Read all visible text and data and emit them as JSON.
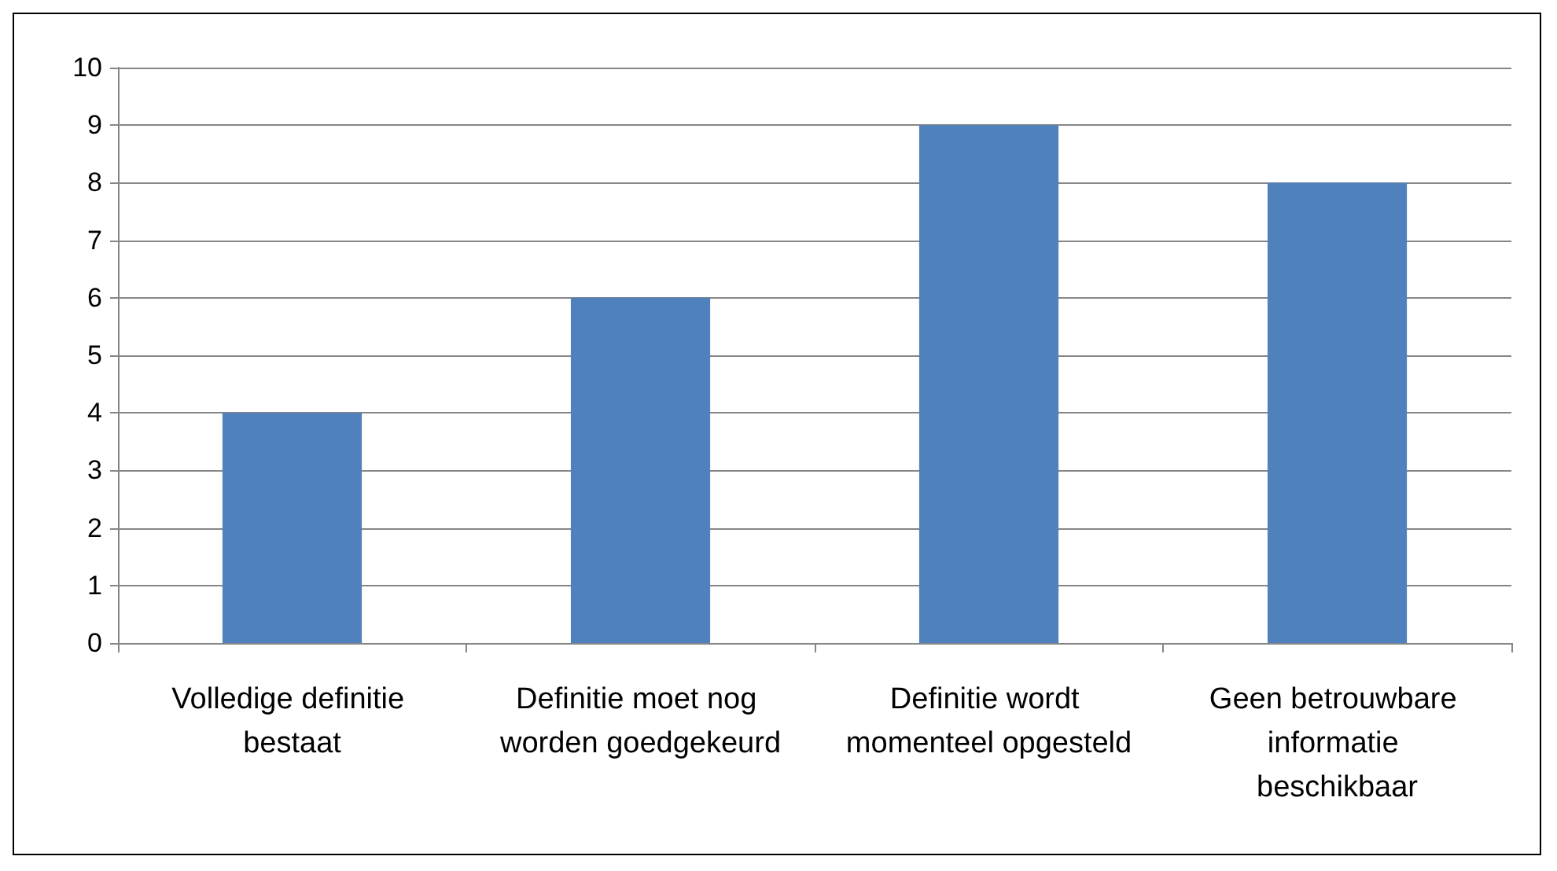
{
  "chart_data": {
    "type": "bar",
    "categories": [
      "Volledige definitie bestaat",
      "Definitie moet nog worden goedgekeurd",
      "Definitie wordt momenteel opgesteld",
      "Geen betrouwbare informatie beschikbaar"
    ],
    "values": [
      4,
      6,
      9,
      8
    ],
    "color": "#4f81bd",
    "ylim": [
      0,
      10
    ],
    "yticks": [
      0,
      1,
      2,
      3,
      4,
      5,
      6,
      7,
      8,
      9,
      10
    ],
    "grid": "y"
  }
}
